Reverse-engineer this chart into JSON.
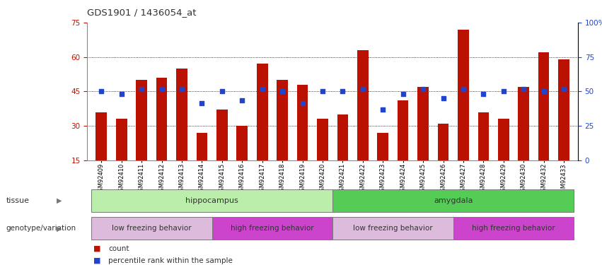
{
  "title": "GDS1901 / 1436054_at",
  "samples": [
    "GSM92409",
    "GSM92410",
    "GSM92411",
    "GSM92412",
    "GSM92413",
    "GSM92414",
    "GSM92415",
    "GSM92416",
    "GSM92417",
    "GSM92418",
    "GSM92419",
    "GSM92420",
    "GSM92421",
    "GSM92422",
    "GSM92423",
    "GSM92424",
    "GSM92425",
    "GSM92426",
    "GSM92427",
    "GSM92428",
    "GSM92429",
    "GSM92430",
    "GSM92432",
    "GSM92433"
  ],
  "bar_values": [
    36,
    33,
    50,
    51,
    55,
    27,
    37,
    30,
    57,
    50,
    48,
    33,
    35,
    63,
    27,
    41,
    47,
    31,
    72,
    36,
    33,
    47,
    62,
    59
  ],
  "dot_values": [
    45,
    44,
    46,
    46,
    46,
    40,
    45,
    41,
    46,
    45,
    40,
    45,
    45,
    46,
    37,
    44,
    46,
    42,
    46,
    44,
    45,
    46,
    45,
    46
  ],
  "ylim_left": [
    15,
    75
  ],
  "ylim_right": [
    0,
    100
  ],
  "yticks_left": [
    15,
    30,
    45,
    60,
    75
  ],
  "yticks_right": [
    0,
    25,
    50,
    75,
    100
  ],
  "ytick_labels_right": [
    "0",
    "25",
    "50",
    "75",
    "100%"
  ],
  "grid_values": [
    30,
    45,
    60
  ],
  "bar_color": "#bb1100",
  "dot_color": "#2244cc",
  "bar_bottom": 15,
  "tissue_groups": [
    {
      "label": "hippocampus",
      "start": 0,
      "end": 12,
      "color": "#bbeeaa"
    },
    {
      "label": "amygdala",
      "start": 12,
      "end": 24,
      "color": "#55cc55"
    }
  ],
  "genotype_groups": [
    {
      "label": "low freezing behavior",
      "start": 0,
      "end": 6,
      "color": "#ddbbdd"
    },
    {
      "label": "high freezing behavior",
      "start": 6,
      "end": 12,
      "color": "#cc44cc"
    },
    {
      "label": "low freezing behavior",
      "start": 12,
      "end": 18,
      "color": "#ddbbdd"
    },
    {
      "label": "high freezing behavior",
      "start": 18,
      "end": 24,
      "color": "#cc44cc"
    }
  ],
  "tissue_label": "tissue",
  "genotype_label": "genotype/variation",
  "legend_items": [
    {
      "label": "count",
      "color": "#bb1100",
      "marker": "s"
    },
    {
      "label": "percentile rank within the sample",
      "color": "#2244cc",
      "marker": "s"
    }
  ],
  "title_color": "#333333",
  "left_tick_color": "#bb1100",
  "right_tick_color": "#2244cc",
  "bg_color": "#ffffff"
}
